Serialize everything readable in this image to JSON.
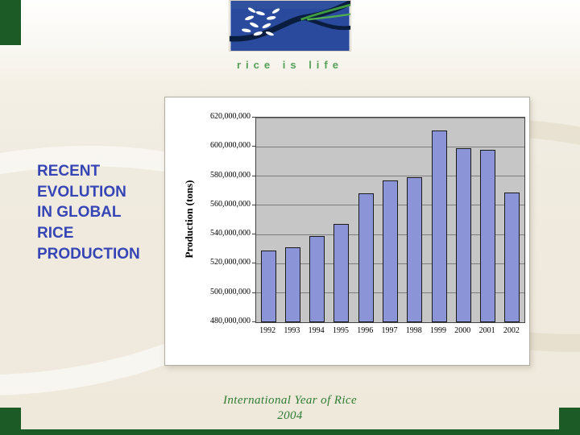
{
  "slide": {
    "title": "RECENT\nEVOLUTION\nIN GLOBAL\nRICE\nPRODUCTION",
    "title_color": "#3645b5",
    "footer": "International Year of Rice\n2004",
    "footer_color": "#2f7d33",
    "logo_text": "rice is life",
    "logo_text_color": "#55a055",
    "accent_green": "#1d5b26"
  },
  "chart_data": {
    "type": "bar",
    "categories": [
      "1992",
      "1993",
      "1994",
      "1995",
      "1996",
      "1997",
      "1998",
      "1999",
      "2000",
      "2001",
      "2002"
    ],
    "values": [
      529000000,
      531000000,
      539000000,
      547000000,
      568000000,
      577000000,
      579000000,
      611000000,
      599000000,
      598000000,
      569000000
    ],
    "title": "",
    "xlabel": "",
    "ylabel": "Production (tons)",
    "ylim": [
      480000000,
      620000000
    ],
    "ytick_step": 20000000,
    "grid": true,
    "legend": false,
    "bar_color": "#8a94d6",
    "bar_border": "#1a1a1a",
    "plot_bg": "#c6c6c6"
  }
}
